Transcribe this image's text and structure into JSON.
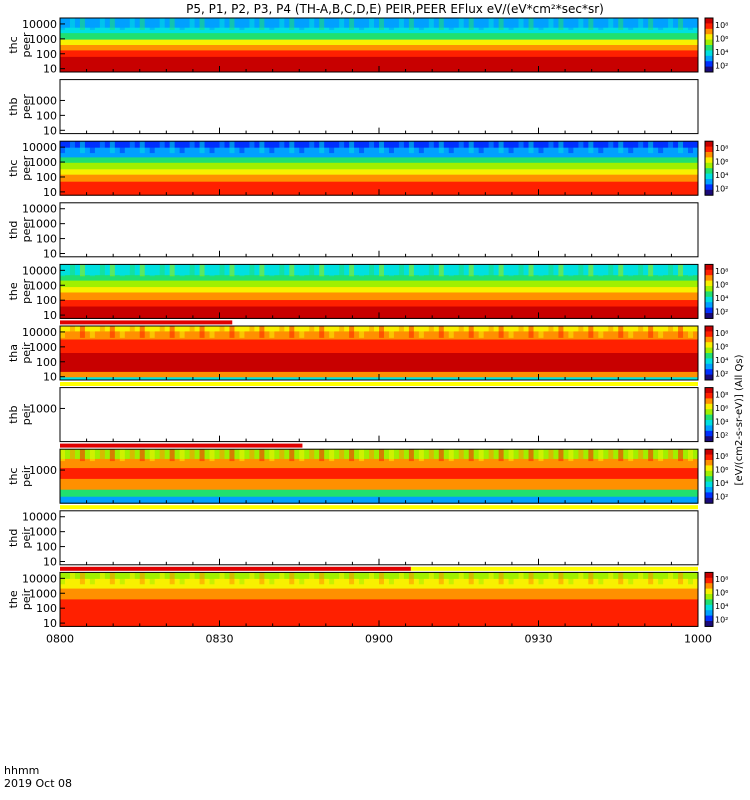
{
  "title": "P5, P1, P2, P3, P4 (TH-A,B,C,D,E) PEIR,PEER EFlux eV/(eV*cm²*sec*sr)",
  "colorbar_unit_label": "[eV/(cm2-s-sr-eV)] (All Qs)",
  "colorbar_ticks": [
    "10²",
    "10⁴",
    "10⁶",
    "10⁸"
  ],
  "colors": {
    "spectrum": [
      "#1a0a7a",
      "#0030ff",
      "#00a0ff",
      "#00e0e0",
      "#20e070",
      "#a0f000",
      "#f8f000",
      "#ff9000",
      "#ff2000",
      "#c80000"
    ],
    "empty_panel": "#ffffff",
    "status_red": "#e00000",
    "status_yellow": "#ffff00"
  },
  "time_axis": {
    "label_line1": "hhmm",
    "label_line2": "2019 Oct 08",
    "tick_labels": [
      "0800",
      "0830",
      "0900",
      "0930",
      "1000"
    ]
  },
  "chart_data": {
    "type": "heatmap",
    "x_range": [
      "08:00",
      "10:00"
    ],
    "y_scale": "log",
    "colorbar_range": [
      100,
      100000000
    ],
    "panels": [
      {
        "probe": "thc",
        "species": "peer",
        "ylabel_1": "thc",
        "ylabel_2": "peer",
        "y_ticks": [
          "10",
          "100",
          "1000",
          "10000"
        ],
        "y_range": [
          6,
          25000
        ],
        "has_data": true,
        "colorbar": true
      },
      {
        "probe": "thb",
        "species": "peer",
        "ylabel_1": "thb",
        "ylabel_2": "peer",
        "y_ticks": [
          "10",
          "100",
          "1000"
        ],
        "y_range": [
          6,
          25000
        ],
        "has_data": false,
        "colorbar": false
      },
      {
        "probe": "thc",
        "species": "peer",
        "ylabel_1": "thc",
        "ylabel_2": "peer",
        "y_ticks": [
          "10",
          "100",
          "1000",
          "10000"
        ],
        "y_range": [
          6,
          25000
        ],
        "has_data": true,
        "colorbar": true
      },
      {
        "probe": "thd",
        "species": "peer",
        "ylabel_1": "thd",
        "ylabel_2": "peer",
        "y_ticks": [
          "10",
          "100",
          "1000",
          "10000"
        ],
        "y_range": [
          6,
          25000
        ],
        "has_data": false,
        "colorbar": false
      },
      {
        "probe": "the",
        "species": "peer",
        "ylabel_1": "the",
        "ylabel_2": "peer",
        "y_ticks": [
          "10",
          "100",
          "1000",
          "10000"
        ],
        "y_range": [
          6,
          25000
        ],
        "has_data": true,
        "colorbar": true
      },
      {
        "probe": "tha",
        "species": "peir",
        "ylabel_1": "tha",
        "ylabel_2": "peir",
        "y_ticks": [
          "10",
          "100",
          "1000",
          "10000"
        ],
        "y_range": [
          6,
          25000
        ],
        "has_data": true,
        "colorbar": true
      },
      {
        "probe": "thb",
        "species": "peir",
        "ylabel_1": "thb",
        "ylabel_2": "peir",
        "y_ticks": [
          "1000"
        ],
        "y_range": [
          6,
          25000
        ],
        "has_data": false,
        "colorbar": true
      },
      {
        "probe": "thc",
        "species": "peir",
        "ylabel_1": "thc",
        "ylabel_2": "peir",
        "y_ticks": [
          "1000"
        ],
        "y_range": [
          6,
          25000
        ],
        "has_data": true,
        "colorbar": true
      },
      {
        "probe": "thd",
        "species": "peir",
        "ylabel_1": "thd",
        "ylabel_2": "peir",
        "y_ticks": [
          "10",
          "100",
          "1000",
          "10000"
        ],
        "y_range": [
          6,
          25000
        ],
        "has_data": false,
        "colorbar": false
      },
      {
        "probe": "the",
        "species": "peir",
        "ylabel_1": "the",
        "ylabel_2": "peir",
        "y_ticks": [
          "10",
          "100",
          "1000",
          "10000"
        ],
        "y_range": [
          6,
          25000
        ],
        "has_data": true,
        "colorbar": true
      }
    ]
  }
}
